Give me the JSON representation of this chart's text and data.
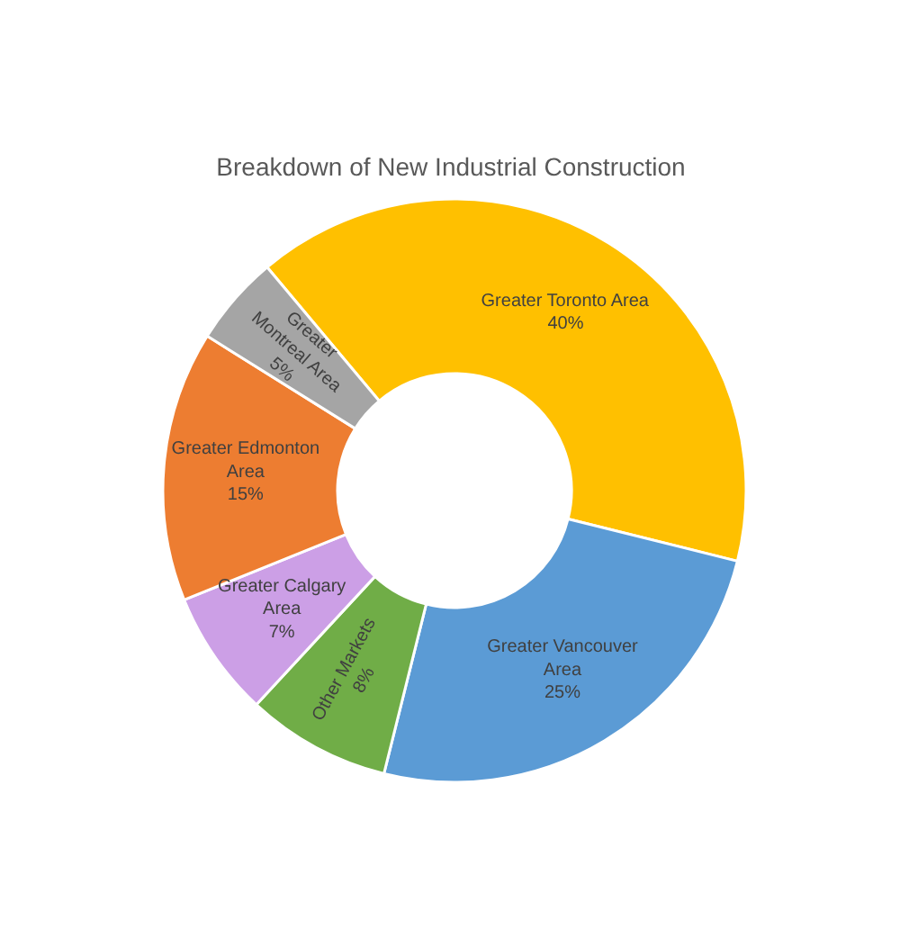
{
  "chart_data": {
    "type": "donut",
    "title": "Breakdown of New Industrial Construction",
    "categories": [
      "Greater Toronto Area",
      "Greater Vancouver Area",
      "Other Markets",
      "Greater Calgary Area",
      "Greater Edmonton Area",
      "Greater Montreal Area"
    ],
    "values": [
      40,
      25,
      8,
      7,
      15,
      5
    ],
    "colors": [
      "#ffc000",
      "#5b9bd5",
      "#70ad47",
      "#cc9fe6",
      "#ed7d31",
      "#a5a5a5"
    ],
    "value_labels": [
      "40%",
      "25%",
      "8%",
      "7%",
      "15%",
      "5%"
    ],
    "legend": false
  }
}
